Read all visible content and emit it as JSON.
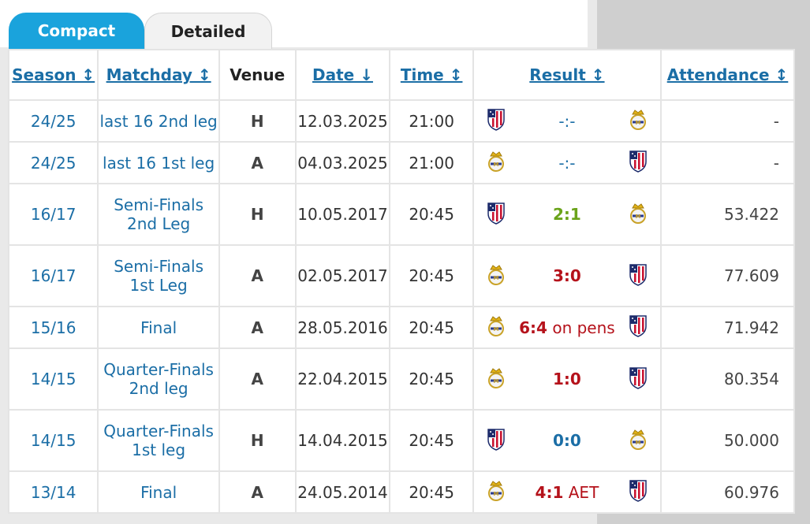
{
  "tabs": {
    "compact": "Compact",
    "detailed": "Detailed"
  },
  "headers": {
    "season": "Season ↕",
    "matchday": "Matchday ↕",
    "venue": "Venue",
    "date": "Date ↓",
    "time": "Time ↕",
    "result": "Result ↕",
    "attendance": "Attendance ↕"
  },
  "rows": [
    {
      "season": "24/25",
      "md1": "last 16 2nd leg",
      "md2": "",
      "venue": "H",
      "date": "12.03.2025",
      "time": "21:00",
      "home": "atletico-crest-icon",
      "away": "real-madrid-crest-icon",
      "score": "-:-",
      "suffix": "",
      "resclass": "res-dash",
      "att": "-"
    },
    {
      "season": "24/25",
      "md1": "last 16 1st leg",
      "md2": "",
      "venue": "A",
      "date": "04.03.2025",
      "time": "21:00",
      "home": "real-madrid-crest-icon",
      "away": "atletico-crest-icon",
      "score": "-:-",
      "suffix": "",
      "resclass": "res-dash",
      "att": "-"
    },
    {
      "season": "16/17",
      "md1": "Semi-Finals",
      "md2": "2nd Leg",
      "venue": "H",
      "date": "10.05.2017",
      "time": "20:45",
      "home": "atletico-crest-icon",
      "away": "real-madrid-crest-icon",
      "score": "2:1",
      "suffix": "",
      "resclass": "res-win",
      "att": "53.422"
    },
    {
      "season": "16/17",
      "md1": "Semi-Finals",
      "md2": "1st Leg",
      "venue": "A",
      "date": "02.05.2017",
      "time": "20:45",
      "home": "real-madrid-crest-icon",
      "away": "atletico-crest-icon",
      "score": "3:0",
      "suffix": "",
      "resclass": "res-loss",
      "att": "77.609"
    },
    {
      "season": "15/16",
      "md1": "Final",
      "md2": "",
      "venue": "A",
      "date": "28.05.2016",
      "time": "20:45",
      "home": "real-madrid-crest-icon",
      "away": "atletico-crest-icon",
      "score": "6:4",
      "suffix": " on pens",
      "resclass": "res-loss",
      "att": "71.942"
    },
    {
      "season": "14/15",
      "md1": "Quarter-Finals",
      "md2": "2nd leg",
      "venue": "A",
      "date": "22.04.2015",
      "time": "20:45",
      "home": "real-madrid-crest-icon",
      "away": "atletico-crest-icon",
      "score": "1:0",
      "suffix": "",
      "resclass": "res-loss",
      "att": "80.354"
    },
    {
      "season": "14/15",
      "md1": "Quarter-Finals",
      "md2": "1st leg",
      "venue": "H",
      "date": "14.04.2015",
      "time": "20:45",
      "home": "atletico-crest-icon",
      "away": "real-madrid-crest-icon",
      "score": "0:0",
      "suffix": "",
      "resclass": "res-draw",
      "att": "50.000"
    },
    {
      "season": "13/14",
      "md1": "Final",
      "md2": "",
      "venue": "A",
      "date": "24.05.2014",
      "time": "20:45",
      "home": "real-madrid-crest-icon",
      "away": "atletico-crest-icon",
      "score": "4:1",
      "suffix": " AET",
      "resclass": "res-loss",
      "att": "60.976"
    }
  ],
  "colors": {
    "accent": "#1aa3dc",
    "link": "#1b6ea6",
    "win": "#6aa31a",
    "loss": "#b5121b"
  }
}
